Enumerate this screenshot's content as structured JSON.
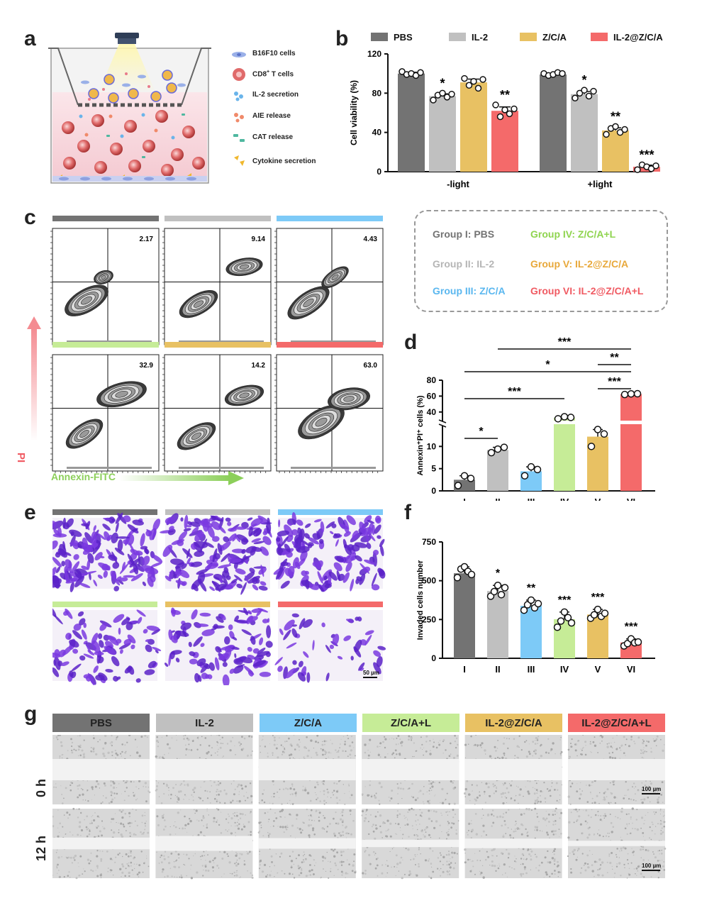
{
  "panels": {
    "a": "a",
    "b": "b",
    "c": "c",
    "d": "d",
    "e": "e",
    "f": "f",
    "g": "g"
  },
  "colors": {
    "PBS": "#737373",
    "IL2": "#c0c0c0",
    "ZCA": "#7dcaf7",
    "ZCAL": "#c6ec97",
    "IL2ZCA": "#e8c163",
    "IL2ZCAL": "#f46a6a",
    "ZCA_b": "#e8c163",
    "IL2ZCA_b": "#f46a6a"
  },
  "schematic": {
    "legend": [
      {
        "icon": "b16f10-cell-icon",
        "label": "B16F10 cells"
      },
      {
        "icon": "cd8-t-cell-icon",
        "label": "CD8",
        "sup": "+",
        "label2": " T cells"
      },
      {
        "icon": "il2-secretion-icon",
        "label": "IL-2 secretion"
      },
      {
        "icon": "aie-release-icon",
        "label": "AIE release"
      },
      {
        "icon": "cat-release-icon",
        "label": "CAT release"
      },
      {
        "icon": "cytokine-secretion-icon",
        "label": "Cytokine secretion"
      }
    ]
  },
  "chart_data": [
    {
      "id": "b",
      "type": "bar",
      "legend": [
        "PBS",
        "IL-2",
        "Z/C/A",
        "IL-2@Z/C/A"
      ],
      "categories": [
        "-light",
        "+light"
      ],
      "series": [
        {
          "name": "PBS",
          "values": [
            100,
            99
          ]
        },
        {
          "name": "IL-2",
          "values": [
            77,
            79
          ]
        },
        {
          "name": "Z/C/A",
          "values": [
            91,
            42
          ]
        },
        {
          "name": "IL-2@Z/C/A",
          "values": [
            62,
            5
          ]
        }
      ],
      "points": [
        [
          [
            102,
            99,
            100,
            98,
            101
          ],
          [
            100,
            98,
            99,
            101,
            100
          ]
        ],
        [
          [
            73,
            78,
            80,
            76,
            79
          ],
          [
            75,
            80,
            83,
            77,
            82
          ]
        ],
        [
          [
            95,
            88,
            92,
            85,
            94
          ],
          [
            38,
            44,
            46,
            40,
            43
          ]
        ],
        [
          [
            68,
            56,
            63,
            59,
            64
          ],
          [
            2,
            7,
            5,
            3,
            6
          ]
        ]
      ],
      "annotations": [
        [
          "",
          "*",
          "",
          "**"
        ],
        [
          "",
          "*",
          "**",
          "***"
        ]
      ],
      "ylabel": "Cell viability (%)",
      "yticks": [
        "0",
        "40",
        "80",
        "120"
      ],
      "ylim": [
        0,
        120
      ]
    },
    {
      "id": "d",
      "type": "bar",
      "categories": [
        "I",
        "II",
        "III",
        "IV",
        "V",
        "VI"
      ],
      "values": [
        2.5,
        9.2,
        4.4,
        32.9,
        12.2,
        62.5
      ],
      "points": [
        [
          1.2,
          3.4,
          2.8
        ],
        [
          8.6,
          9.4,
          9.8
        ],
        [
          3.4,
          5.4,
          4.8
        ],
        [
          31.5,
          34.0,
          33.2
        ],
        [
          10.0,
          13.8,
          12.8
        ],
        [
          62.0,
          62.8,
          63.0
        ]
      ],
      "ylabel": "Annexin⁺PI⁺ cells (%)",
      "yticks_low": [
        "0",
        "5",
        "10"
      ],
      "yticks_high": [
        "40",
        "60",
        "80"
      ],
      "axis_break": [
        15,
        30
      ],
      "significance": [
        {
          "from": "I",
          "to": "II",
          "label": "*"
        },
        {
          "from": "I",
          "to": "IV",
          "label": "***"
        },
        {
          "from": "V",
          "to": "VI",
          "label": "***"
        },
        {
          "from": "I",
          "to": "VI",
          "label": "*"
        },
        {
          "from": "V",
          "to": "VI",
          "label": "**"
        },
        {
          "from": "II",
          "to": "VI",
          "label": "***"
        }
      ]
    },
    {
      "id": "f",
      "type": "bar",
      "categories": [
        "I",
        "II",
        "III",
        "IV",
        "V",
        "VI"
      ],
      "values": [
        548,
        434,
        338,
        252,
        282,
        102
      ],
      "points": [
        [
          520,
          575,
          590,
          560,
          540
        ],
        [
          400,
          430,
          470,
          410,
          455
        ],
        [
          310,
          345,
          375,
          325,
          352
        ],
        [
          200,
          240,
          298,
          262,
          228
        ],
        [
          258,
          280,
          315,
          270,
          290
        ],
        [
          80,
          95,
          125,
          100,
          105
        ]
      ],
      "annotations": [
        "",
        "*",
        "**",
        "***",
        "***",
        "***"
      ],
      "ylabel": "Invaded cells number",
      "yticks": [
        "0",
        "250",
        "500",
        "750"
      ],
      "ylim": [
        0,
        750
      ]
    }
  ],
  "flow": {
    "quadrant_values": [
      "2.17",
      "9.14",
      "4.43",
      "32.9",
      "14.2",
      "63.0"
    ],
    "y_axis_label": "PI",
    "x_axis_label": "Annexin-FITC"
  },
  "groups_legend": [
    {
      "label": "Group I: PBS"
    },
    {
      "label": "Group II: IL-2"
    },
    {
      "label": "Group III: Z/C/A"
    },
    {
      "label": "Group IV: Z/C/A+L"
    },
    {
      "label": "Group V: IL-2@Z/C/A"
    },
    {
      "label": "Group VI: IL-2@Z/C/A+L"
    }
  ],
  "invasion": {
    "scale_bar": "50 µm"
  },
  "wound": {
    "headers": [
      "PBS",
      "IL-2",
      "Z/C/A",
      "Z/C/A+L",
      "IL-2@Z/C/A",
      "IL-2@Z/C/A+L"
    ],
    "rows": [
      "0 h",
      "12 h"
    ],
    "gap_widths_relative": [
      1.0,
      1.0,
      1.0,
      1.0,
      1.0,
      1.0,
      0.55,
      0.7,
      0.5,
      0.35,
      0.45,
      0.25
    ],
    "scale_bar": "100 µm"
  }
}
